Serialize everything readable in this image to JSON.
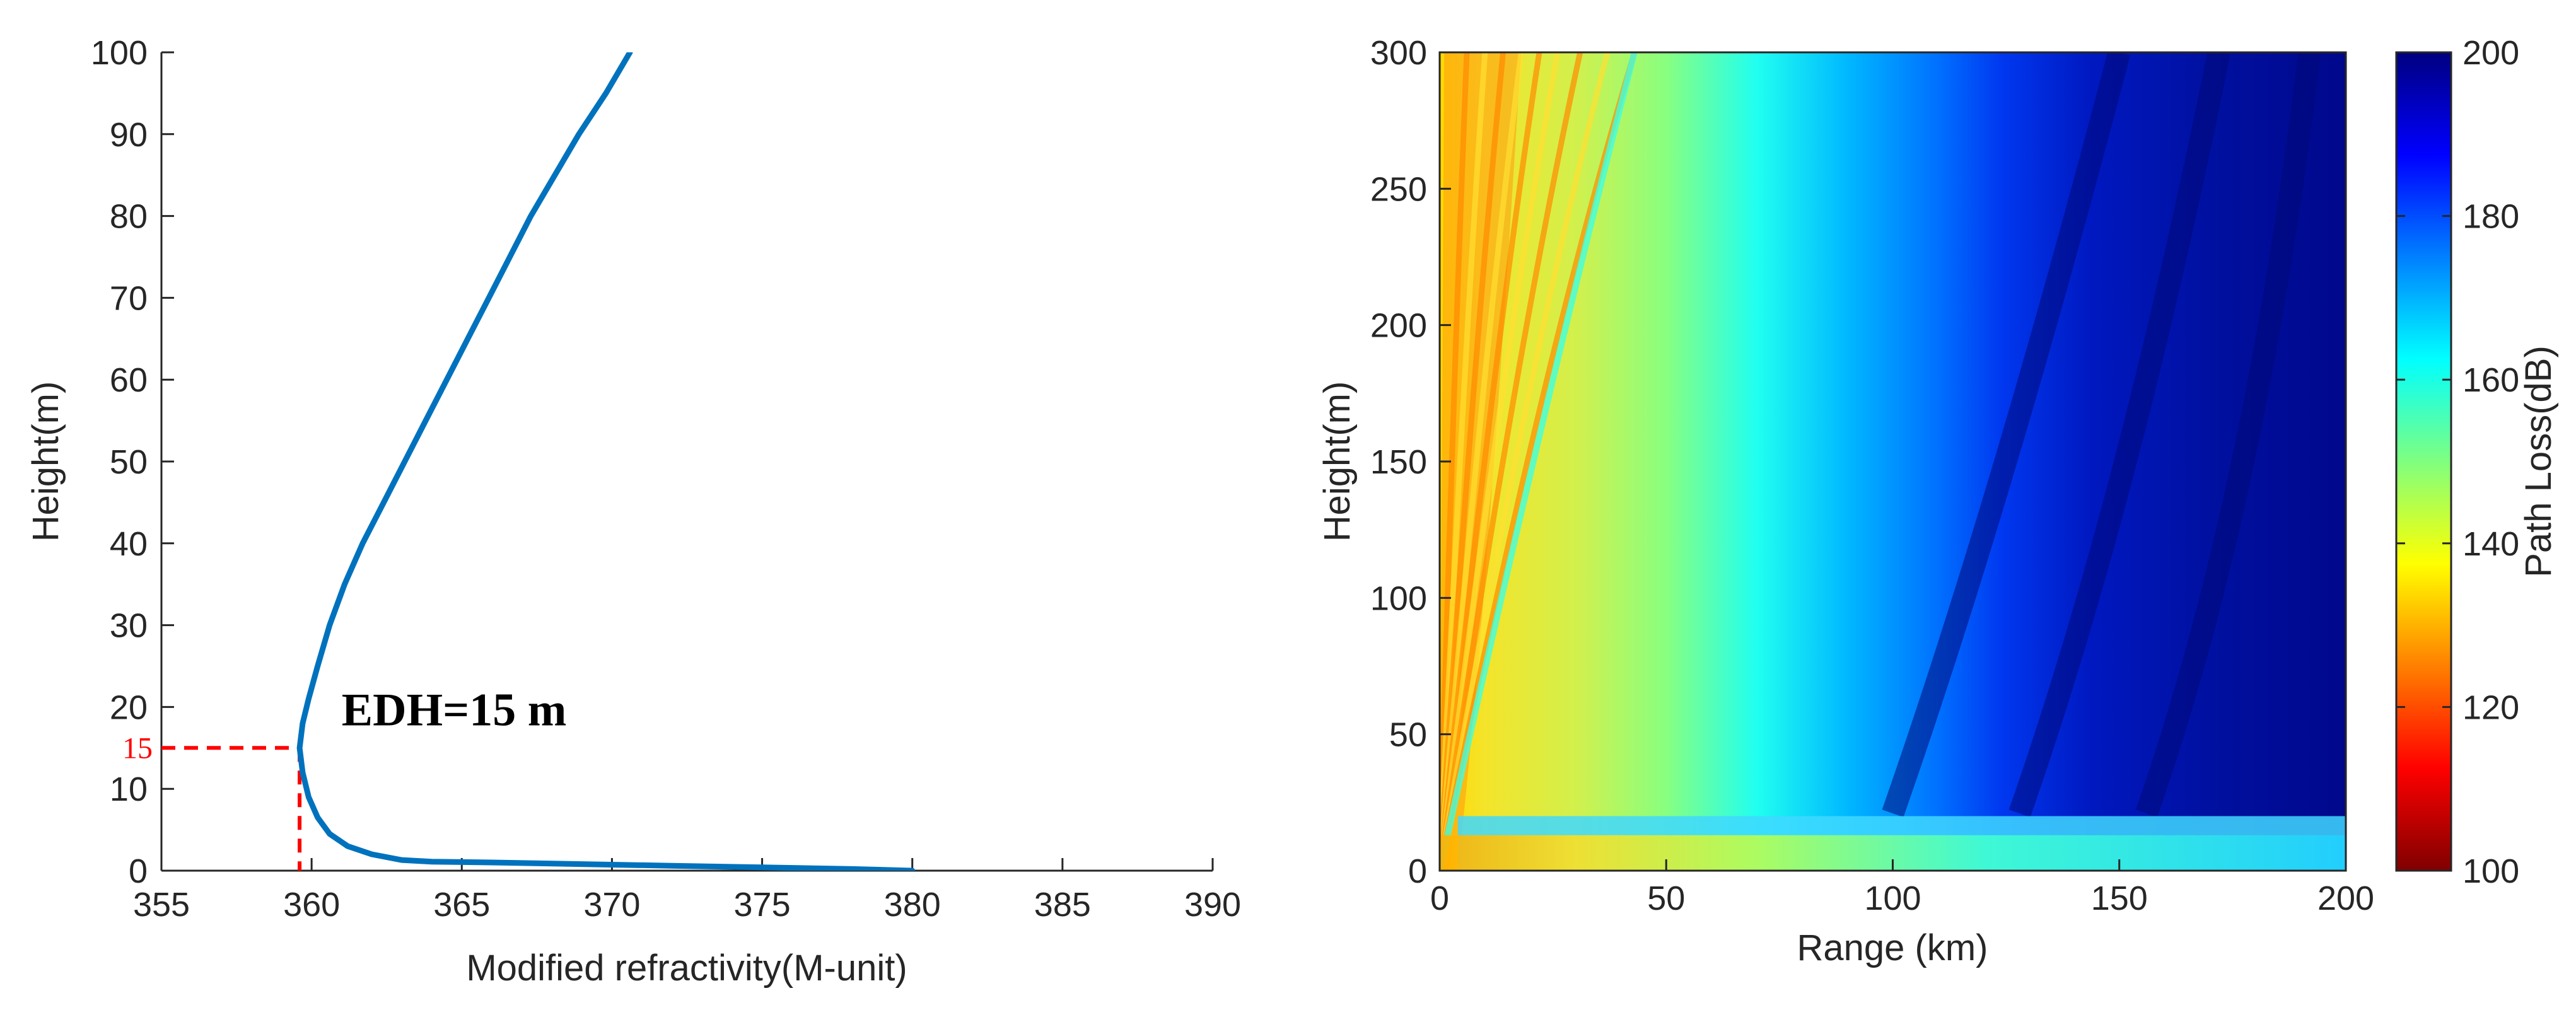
{
  "chart_data": [
    {
      "type": "line",
      "title": "",
      "xlabel": "Modified refractivity(M-unit)",
      "ylabel": "Height(m)",
      "xlim": [
        355,
        390
      ],
      "ylim": [
        0,
        100
      ],
      "xticks": [
        355,
        360,
        365,
        370,
        375,
        380,
        385,
        390
      ],
      "yticks": [
        0,
        10,
        20,
        30,
        40,
        50,
        60,
        70,
        80,
        90,
        100
      ],
      "grid": false,
      "series": [
        {
          "color": "#0072bd",
          "points": [
            [
              380.0,
              0.0
            ],
            [
              378.0,
              0.2
            ],
            [
              375.0,
              0.4
            ],
            [
              372.0,
              0.6
            ],
            [
              369.0,
              0.8
            ],
            [
              366.0,
              1.0
            ],
            [
              364.0,
              1.1
            ],
            [
              363.0,
              1.3
            ],
            [
              362.0,
              2.0
            ],
            [
              361.2,
              3.0
            ],
            [
              360.6,
              4.5
            ],
            [
              360.2,
              6.5
            ],
            [
              359.9,
              9.0
            ],
            [
              359.7,
              12.0
            ],
            [
              359.6,
              15.0
            ],
            [
              359.7,
              18.0
            ],
            [
              359.9,
              21.0
            ],
            [
              360.2,
              25.0
            ],
            [
              360.6,
              30.0
            ],
            [
              361.1,
              35.0
            ],
            [
              361.7,
              40.0
            ],
            [
              362.4,
              45.0
            ],
            [
              363.1,
              50.0
            ],
            [
              363.8,
              55.0
            ],
            [
              364.5,
              60.0
            ],
            [
              365.2,
              65.0
            ],
            [
              365.9,
              70.0
            ],
            [
              366.6,
              75.0
            ],
            [
              367.3,
              80.0
            ],
            [
              368.1,
              85.0
            ],
            [
              368.9,
              90.0
            ],
            [
              369.8,
              95.0
            ],
            [
              370.6,
              100.0
            ]
          ]
        }
      ],
      "annotations": [
        {
          "text": "EDH=15 m",
          "x": 361.0,
          "y": 17.0
        },
        {
          "marker_label": "15",
          "x": 359.6,
          "y": 15,
          "color": "#ff0000"
        }
      ]
    },
    {
      "type": "heatmap",
      "title": "",
      "xlabel": "Range (km)",
      "ylabel": "Height(m)",
      "xlim": [
        0,
        200
      ],
      "ylim": [
        0,
        300
      ],
      "xticks": [
        0,
        50,
        100,
        150,
        200
      ],
      "yticks": [
        0,
        50,
        100,
        150,
        200,
        250,
        300
      ],
      "colormap": "jet",
      "colorbar": {
        "label": "Path Loss(dB)",
        "min": 100,
        "max": 200,
        "ticks": [
          100,
          120,
          140,
          160,
          180,
          200
        ]
      },
      "surface_duct_height": 20
    }
  ]
}
